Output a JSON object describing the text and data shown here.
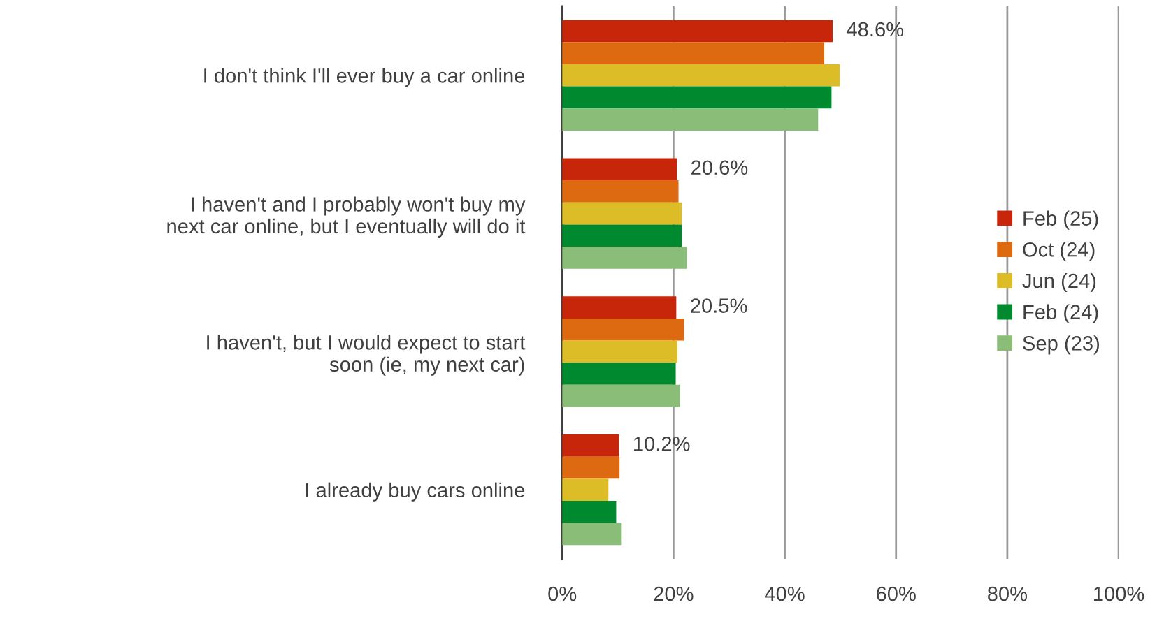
{
  "chart_data": {
    "type": "bar",
    "orientation": "horizontal",
    "categories": [
      "I don't think I'll ever buy a car online",
      "I haven't and I probably won't buy my\nnext car online, but I eventually will do it",
      "I haven't, but I would expect to start\nsoon (ie, my next car)",
      "I already buy cars online"
    ],
    "series": [
      {
        "name": "Feb (25)",
        "color": "#c8260a",
        "values": [
          48.6,
          20.6,
          20.5,
          10.2
        ],
        "value_labels": [
          "48.6%",
          "20.6%",
          "20.5%",
          "10.2%"
        ]
      },
      {
        "name": "Oct (24)",
        "color": "#dd6a10",
        "values": [
          47.1,
          20.9,
          21.9,
          10.3
        ]
      },
      {
        "name": "Jun (24)",
        "color": "#dcbd28",
        "values": [
          49.9,
          21.5,
          20.7,
          8.3
        ]
      },
      {
        "name": "Feb (24)",
        "color": "#00892e",
        "values": [
          48.4,
          21.5,
          20.4,
          9.7
        ]
      },
      {
        "name": "Sep (23)",
        "color": "#8abd78",
        "values": [
          46.0,
          22.4,
          21.2,
          10.7
        ]
      }
    ],
    "xlim": [
      0,
      100
    ],
    "xticks": [
      {
        "value": 0,
        "label": "0%"
      },
      {
        "value": 20,
        "label": "20%"
      },
      {
        "value": 40,
        "label": "40%"
      },
      {
        "value": 60,
        "label": "60%"
      },
      {
        "value": 80,
        "label": "80%"
      },
      {
        "value": 100,
        "label": "100%"
      }
    ],
    "grid": "x",
    "legend": "right"
  }
}
